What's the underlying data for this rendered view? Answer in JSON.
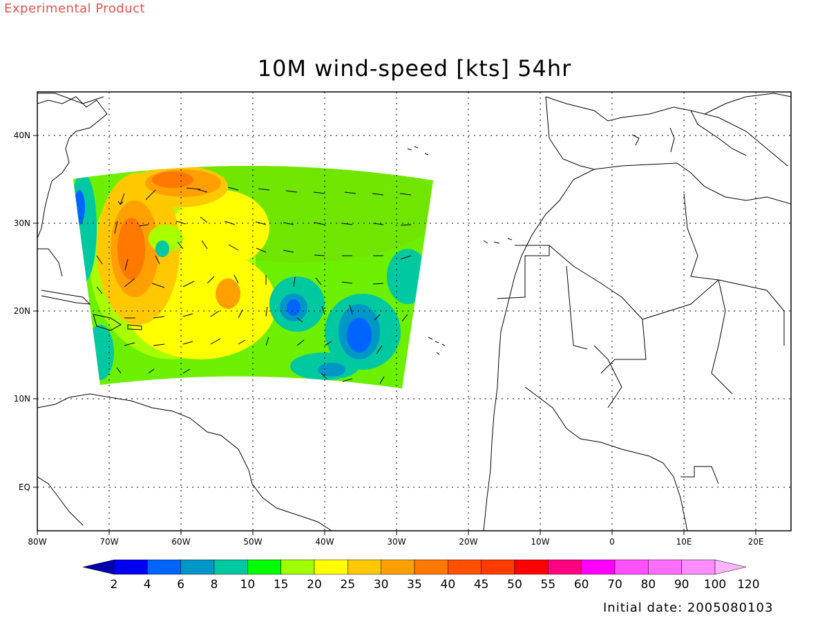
{
  "header": {
    "experimental": "Experimental Product",
    "title": "10M wind-speed [kts] 54hr"
  },
  "footer": {
    "initial_date": "Initial date: 2005080103"
  },
  "map": {
    "lon_ticks": [
      "80W",
      "70W",
      "60W",
      "50W",
      "40W",
      "30W",
      "20W",
      "10W",
      "0",
      "10E",
      "20E"
    ],
    "lat_ticks": [
      "40N",
      "30N",
      "20N",
      "10N",
      "EQ"
    ],
    "extent": {
      "lon": [
        -80,
        25
      ],
      "lat": [
        -5,
        45
      ]
    }
  },
  "colorbar": {
    "labels": [
      "2",
      "4",
      "6",
      "8",
      "10",
      "15",
      "20",
      "25",
      "30",
      "35",
      "40",
      "45",
      "50",
      "55",
      "60",
      "70",
      "80",
      "90",
      "100",
      "120"
    ],
    "colors": [
      "#0000a8",
      "#0000f0",
      "#0064ff",
      "#0096c8",
      "#00c8a0",
      "#00ff00",
      "#a0ff00",
      "#ffff00",
      "#ffc800",
      "#ffa000",
      "#ff7800",
      "#ff5000",
      "#ff3c00",
      "#ff0000",
      "#ff0080",
      "#ff00ff",
      "#ff50ff",
      "#ff6eff",
      "#ff8cff",
      "#ffb4ff"
    ]
  }
}
